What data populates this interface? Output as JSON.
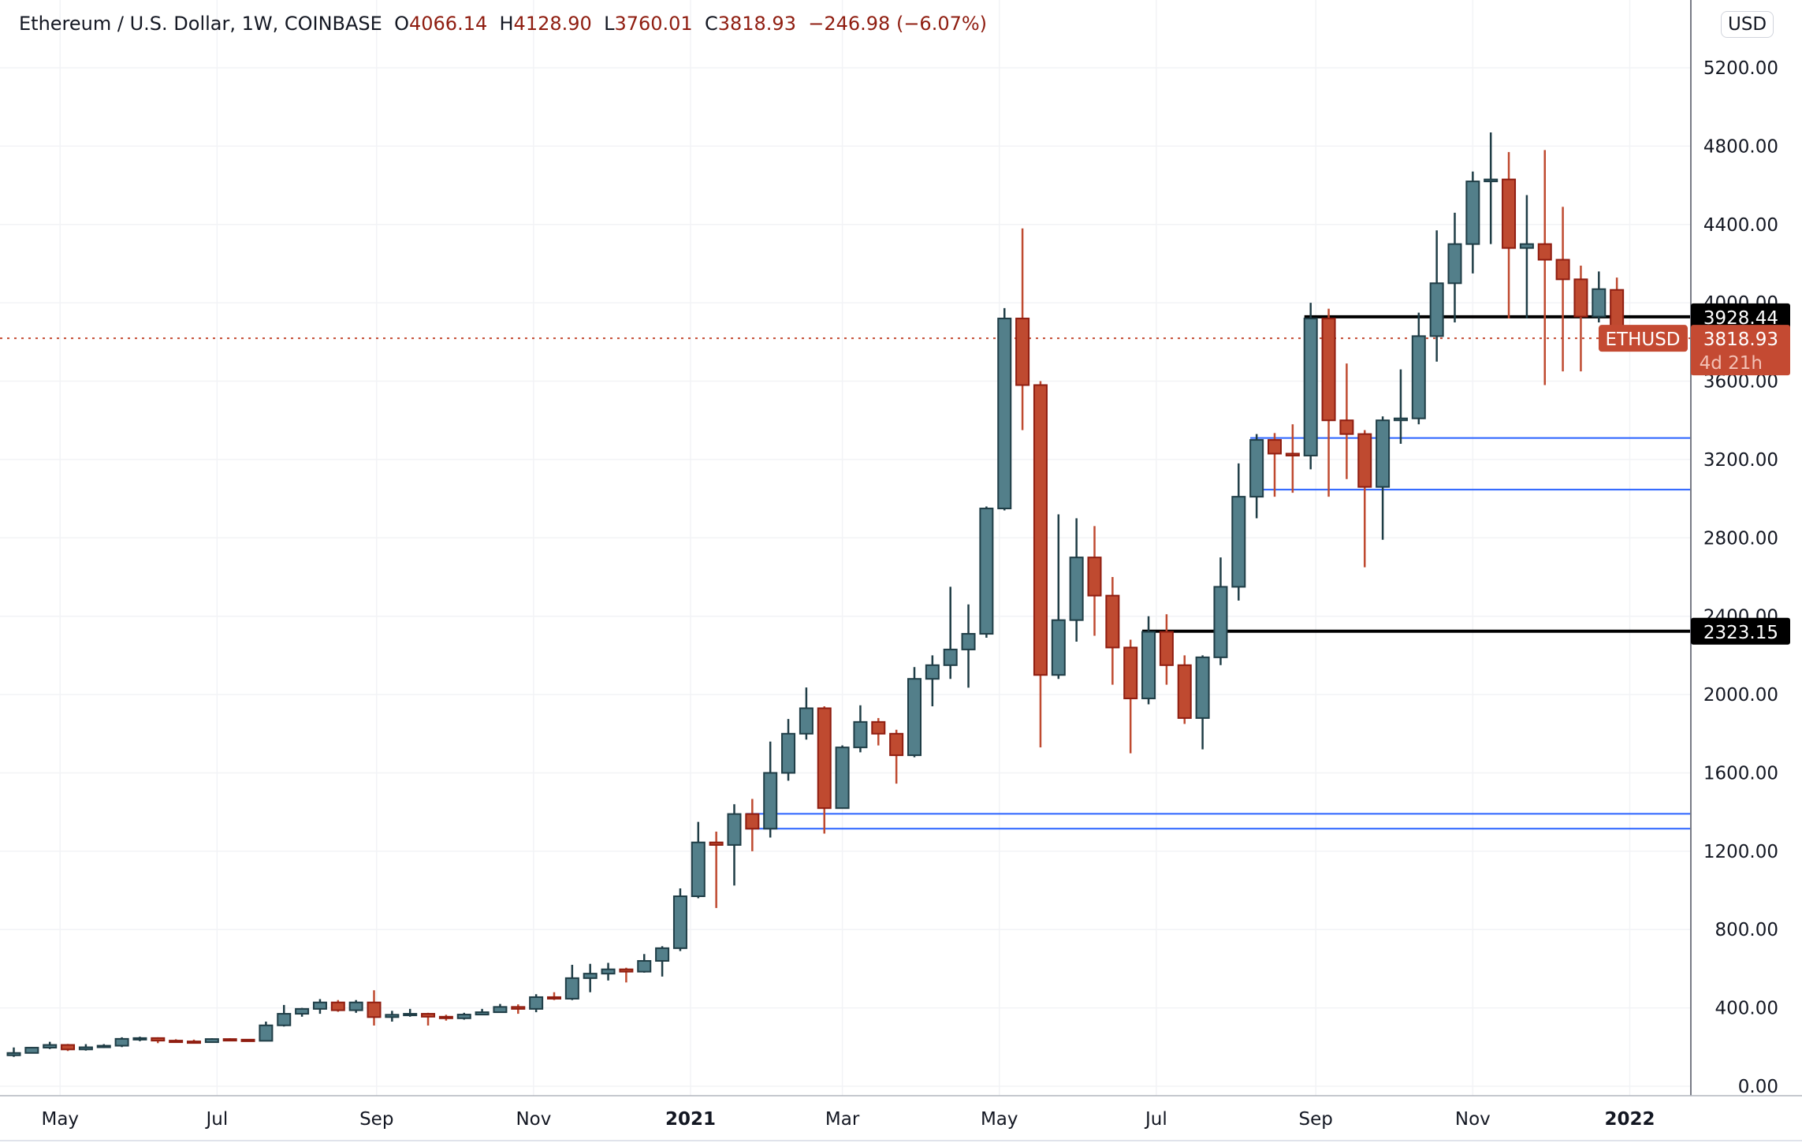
{
  "legend": {
    "symbol": "Ethereum / U.S. Dollar, 1W, COINBASE",
    "o_label": "O",
    "open": "4066.14",
    "h_label": "H",
    "high": "4128.90",
    "l_label": "L",
    "low": "3760.01",
    "c_label": "C",
    "close": "3818.93",
    "change": "−246.98 (−6.07%)"
  },
  "currency": "USD",
  "colors": {
    "up": "#537f8a",
    "up_border": "#1f3d46",
    "down": "#bf4a30",
    "down_border": "#8f1d10",
    "grid": "#f2f3f6",
    "hline": "#000000",
    "blue": "#2962ff",
    "price": "#c44a32"
  },
  "chart_data": {
    "type": "candlestick",
    "title": "Ethereum / U.S. Dollar, 1W, COINBASE",
    "start_date": "2020-04-13",
    "interval_days": 7,
    "ylim": [
      0,
      5200
    ],
    "y_ticks": [
      "0.00",
      "400.00",
      "800.00",
      "1200.00",
      "1600.00",
      "2000.00",
      "2400.00",
      "2800.00",
      "3200.00",
      "3600.00",
      "4000.00",
      "4400.00",
      "4800.00",
      "5200.00"
    ],
    "x_ticks": [
      {
        "label": "May",
        "date": "2020-05-01",
        "bold": false
      },
      {
        "label": "Jul",
        "date": "2020-07-01",
        "bold": false
      },
      {
        "label": "Sep",
        "date": "2020-09-01",
        "bold": false
      },
      {
        "label": "Nov",
        "date": "2020-11-01",
        "bold": false
      },
      {
        "label": "2021",
        "date": "2021-01-01",
        "bold": true
      },
      {
        "label": "Mar",
        "date": "2021-03-01",
        "bold": false
      },
      {
        "label": "May",
        "date": "2021-05-01",
        "bold": false
      },
      {
        "label": "Jul",
        "date": "2021-07-01",
        "bold": false
      },
      {
        "label": "Sep",
        "date": "2021-09-01",
        "bold": false
      },
      {
        "label": "Nov",
        "date": "2021-11-01",
        "bold": false
      },
      {
        "label": "2022",
        "date": "2022-01-01",
        "bold": true
      }
    ],
    "ohlc": [
      [
        158,
        198,
        150,
        170
      ],
      [
        170,
        200,
        168,
        197
      ],
      [
        197,
        227,
        190,
        211
      ],
      [
        211,
        216,
        180,
        188
      ],
      [
        188,
        215,
        182,
        199
      ],
      [
        199,
        215,
        195,
        207
      ],
      [
        207,
        250,
        200,
        242
      ],
      [
        242,
        253,
        230,
        246
      ],
      [
        246,
        250,
        220,
        233
      ],
      [
        233,
        240,
        222,
        229
      ],
      [
        229,
        238,
        220,
        225
      ],
      [
        225,
        245,
        222,
        241
      ],
      [
        241,
        245,
        232,
        238
      ],
      [
        238,
        240,
        228,
        232
      ],
      [
        232,
        330,
        230,
        311
      ],
      [
        311,
        415,
        305,
        370
      ],
      [
        370,
        400,
        355,
        395
      ],
      [
        395,
        445,
        370,
        428
      ],
      [
        428,
        440,
        380,
        388
      ],
      [
        388,
        440,
        375,
        428
      ],
      [
        428,
        490,
        310,
        353
      ],
      [
        353,
        385,
        330,
        365
      ],
      [
        365,
        395,
        355,
        370
      ],
      [
        370,
        375,
        310,
        355
      ],
      [
        355,
        365,
        335,
        347
      ],
      [
        347,
        375,
        340,
        366
      ],
      [
        366,
        395,
        363,
        378
      ],
      [
        378,
        420,
        375,
        405
      ],
      [
        405,
        418,
        370,
        395
      ],
      [
        395,
        470,
        378,
        455
      ],
      [
        455,
        480,
        440,
        447
      ],
      [
        447,
        620,
        440,
        552
      ],
      [
        552,
        625,
        480,
        575
      ],
      [
        575,
        630,
        540,
        597
      ],
      [
        597,
        605,
        530,
        585
      ],
      [
        585,
        675,
        580,
        640
      ],
      [
        640,
        715,
        560,
        705
      ],
      [
        705,
        1010,
        690,
        970
      ],
      [
        970,
        1350,
        960,
        1245
      ],
      [
        1245,
        1300,
        910,
        1232
      ],
      [
        1232,
        1440,
        1025,
        1390
      ],
      [
        1390,
        1467,
        1200,
        1315
      ],
      [
        1315,
        1760,
        1270,
        1600
      ],
      [
        1600,
        1875,
        1560,
        1800
      ],
      [
        1800,
        2036,
        1770,
        1930
      ],
      [
        1930,
        1940,
        1290,
        1420
      ],
      [
        1420,
        1740,
        1420,
        1730
      ],
      [
        1730,
        1945,
        1705,
        1860
      ],
      [
        1860,
        1880,
        1740,
        1800
      ],
      [
        1800,
        1820,
        1545,
        1690
      ],
      [
        1690,
        2140,
        1680,
        2080
      ],
      [
        2080,
        2200,
        1940,
        2150
      ],
      [
        2150,
        2550,
        2080,
        2230
      ],
      [
        2230,
        2460,
        2035,
        2310
      ],
      [
        2310,
        2960,
        2290,
        2950
      ],
      [
        2950,
        3973,
        2940,
        3920
      ],
      [
        3920,
        4380,
        3350,
        3580
      ],
      [
        3580,
        3600,
        1730,
        2100
      ],
      [
        2100,
        2920,
        2080,
        2380
      ],
      [
        2380,
        2900,
        2270,
        2700
      ],
      [
        2700,
        2860,
        2300,
        2505
      ],
      [
        2505,
        2600,
        2050,
        2240
      ],
      [
        2240,
        2280,
        1700,
        1980
      ],
      [
        1980,
        2400,
        1950,
        2320
      ],
      [
        2320,
        2410,
        2050,
        2150
      ],
      [
        2150,
        2200,
        1850,
        1880
      ],
      [
        1880,
        2200,
        1720,
        2190
      ],
      [
        2190,
        2700,
        2150,
        2550
      ],
      [
        2550,
        3180,
        2480,
        3010
      ],
      [
        3010,
        3330,
        2900,
        3300
      ],
      [
        3300,
        3335,
        3010,
        3230
      ],
      [
        3230,
        3380,
        3030,
        3220
      ],
      [
        3220,
        4000,
        3150,
        3920
      ],
      [
        3920,
        3970,
        3010,
        3400
      ],
      [
        3400,
        3690,
        3100,
        3330
      ],
      [
        3330,
        3350,
        2650,
        3060
      ],
      [
        3060,
        3420,
        2790,
        3400
      ],
      [
        3400,
        3660,
        3280,
        3410
      ],
      [
        3410,
        3950,
        3380,
        3830
      ],
      [
        3830,
        4370,
        3700,
        4100
      ],
      [
        4100,
        4460,
        3900,
        4300
      ],
      [
        4300,
        4670,
        4150,
        4620
      ],
      [
        4620,
        4870,
        4300,
        4630
      ],
      [
        4630,
        4770,
        3920,
        4280
      ],
      [
        4280,
        4550,
        3920,
        4300
      ],
      [
        4300,
        4780,
        3580,
        4220
      ],
      [
        4220,
        4490,
        3650,
        4120
      ],
      [
        4120,
        4190,
        3650,
        3930
      ],
      [
        3930,
        4160,
        3900,
        4070
      ],
      [
        4066.14,
        4128.9,
        3760.01,
        3818.93
      ]
    ],
    "horizontal_lines": [
      {
        "price": 3928.44,
        "color": "black",
        "from_date": "2021-08-30",
        "label": "3928.44"
      },
      {
        "price": 2323.15,
        "color": "black",
        "from_date": "2021-06-28",
        "label": "2323.15"
      },
      {
        "price": 3310,
        "color": "blue",
        "from_date": "2021-08-09"
      },
      {
        "price": 3046,
        "color": "blue",
        "from_date": "2021-08-09"
      },
      {
        "price": 1391,
        "color": "blue",
        "from_date": "2021-01-25"
      },
      {
        "price": 1315,
        "color": "blue",
        "from_date": "2021-01-25"
      }
    ],
    "last_price": {
      "symbol": "ETHUSD",
      "price": "3818.93",
      "countdown": "4d 21h"
    }
  }
}
